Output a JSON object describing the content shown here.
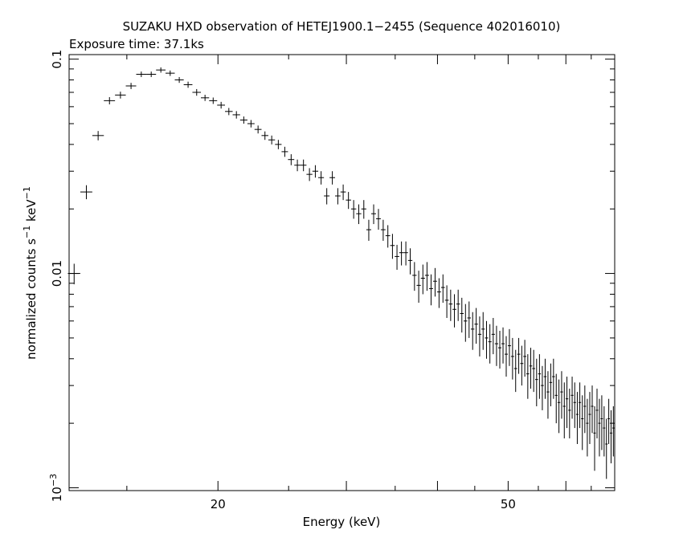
{
  "chart_data": {
    "type": "scatter",
    "title": "SUZAKU HXD observation of HETEJ1900.1−2455 (Sequence 402016010)",
    "subtitle": "Exposure time: 37.1ks",
    "xlabel": "Energy (keV)",
    "ylabel_main": "normalized counts s",
    "ylabel_exp1": "−1",
    "ylabel_mid": " keV",
    "ylabel_exp2": "−1",
    "x_scale": "log",
    "y_scale": "log",
    "xlim": [
      12.5,
      70
    ],
    "ylim": [
      0.00097,
      0.105
    ],
    "grid": false,
    "x_tick_labels": [
      {
        "value": 20,
        "label": "20"
      },
      {
        "value": 50,
        "label": "50"
      }
    ],
    "y_tick_labels": [
      {
        "value": 0.1,
        "label": "0.1"
      },
      {
        "value": 0.01,
        "label": "0.01"
      },
      {
        "value": 0.001,
        "label_base": "10",
        "label_exp": "−3"
      }
    ],
    "series": [
      {
        "points": [
          [
            12.7,
            0.01,
            0.0011
          ],
          [
            13.2,
            0.024,
            0.0018
          ],
          [
            13.7,
            0.044,
            0.0022
          ],
          [
            14.2,
            0.064,
            0.0025
          ],
          [
            14.7,
            0.068,
            0.0025
          ],
          [
            15.2,
            0.075,
            0.0025
          ],
          [
            15.7,
            0.085,
            0.0025
          ],
          [
            16.2,
            0.085,
            0.0025
          ],
          [
            16.7,
            0.089,
            0.0025
          ],
          [
            17.2,
            0.086,
            0.0025
          ],
          [
            17.7,
            0.08,
            0.0025
          ],
          [
            18.2,
            0.076,
            0.0025
          ],
          [
            18.7,
            0.07,
            0.0025
          ],
          [
            19.2,
            0.066,
            0.0022
          ],
          [
            19.7,
            0.064,
            0.0022
          ],
          [
            20.2,
            0.061,
            0.0022
          ],
          [
            20.7,
            0.057,
            0.0022
          ],
          [
            21.2,
            0.055,
            0.0022
          ],
          [
            21.7,
            0.052,
            0.002
          ],
          [
            22.2,
            0.05,
            0.002
          ],
          [
            22.7,
            0.047,
            0.002
          ],
          [
            23.2,
            0.044,
            0.002
          ],
          [
            23.7,
            0.042,
            0.002
          ],
          [
            24.2,
            0.04,
            0.002
          ],
          [
            24.7,
            0.037,
            0.002
          ],
          [
            25.2,
            0.034,
            0.002
          ],
          [
            25.7,
            0.032,
            0.002
          ],
          [
            26.2,
            0.032,
            0.002
          ],
          [
            26.7,
            0.029,
            0.002
          ],
          [
            27.2,
            0.03,
            0.002
          ],
          [
            27.7,
            0.028,
            0.002
          ],
          [
            28.2,
            0.023,
            0.002
          ],
          [
            28.7,
            0.028,
            0.002
          ],
          [
            29.2,
            0.023,
            0.002
          ],
          [
            29.7,
            0.024,
            0.002
          ],
          [
            30.2,
            0.022,
            0.002
          ],
          [
            30.7,
            0.02,
            0.002
          ],
          [
            31.2,
            0.019,
            0.002
          ],
          [
            31.7,
            0.02,
            0.002
          ],
          [
            32.2,
            0.016,
            0.0018
          ],
          [
            32.7,
            0.019,
            0.002
          ],
          [
            33.2,
            0.018,
            0.002
          ],
          [
            33.7,
            0.016,
            0.0018
          ],
          [
            34.2,
            0.015,
            0.0018
          ],
          [
            34.7,
            0.0135,
            0.0018
          ],
          [
            35.2,
            0.012,
            0.0016
          ],
          [
            35.7,
            0.0125,
            0.0016
          ],
          [
            36.2,
            0.0125,
            0.0016
          ],
          [
            36.7,
            0.0115,
            0.0016
          ],
          [
            37.2,
            0.0098,
            0.0015
          ],
          [
            37.7,
            0.0088,
            0.0015
          ],
          [
            38.2,
            0.0095,
            0.0015
          ],
          [
            38.7,
            0.0098,
            0.0015
          ],
          [
            39.2,
            0.0085,
            0.0014
          ],
          [
            39.7,
            0.0092,
            0.0014
          ],
          [
            40.2,
            0.0082,
            0.0013
          ],
          [
            40.7,
            0.0086,
            0.0013
          ],
          [
            41.2,
            0.0075,
            0.0013
          ],
          [
            41.7,
            0.0072,
            0.0012
          ],
          [
            42.2,
            0.0068,
            0.0012
          ],
          [
            42.7,
            0.0072,
            0.0012
          ],
          [
            43.2,
            0.0065,
            0.0012
          ],
          [
            43.7,
            0.006,
            0.0012
          ],
          [
            44.2,
            0.0062,
            0.0012
          ],
          [
            44.7,
            0.0055,
            0.0011
          ],
          [
            45.2,
            0.0058,
            0.0011
          ],
          [
            45.7,
            0.0052,
            0.0011
          ],
          [
            46.2,
            0.0055,
            0.0011
          ],
          [
            46.7,
            0.005,
            0.001
          ],
          [
            47.2,
            0.0048,
            0.001
          ],
          [
            47.7,
            0.0052,
            0.001
          ],
          [
            48.2,
            0.0047,
            0.001
          ],
          [
            48.7,
            0.0045,
            0.0009
          ],
          [
            49.2,
            0.0047,
            0.0009
          ],
          [
            49.7,
            0.0042,
            0.0009
          ],
          [
            50.2,
            0.0046,
            0.0009
          ],
          [
            50.7,
            0.0041,
            0.0009
          ],
          [
            51.2,
            0.0036,
            0.0008
          ],
          [
            51.7,
            0.0042,
            0.0008
          ],
          [
            52.2,
            0.0038,
            0.0008
          ],
          [
            52.7,
            0.0041,
            0.0008
          ],
          [
            53.2,
            0.0034,
            0.0008
          ],
          [
            53.7,
            0.0037,
            0.0008
          ],
          [
            54.2,
            0.0036,
            0.0008
          ],
          [
            54.7,
            0.0032,
            0.0008
          ],
          [
            55.2,
            0.0034,
            0.0008
          ],
          [
            55.7,
            0.003,
            0.0007
          ],
          [
            56.2,
            0.0033,
            0.0007
          ],
          [
            56.7,
            0.0028,
            0.0007
          ],
          [
            57.2,
            0.0031,
            0.0007
          ],
          [
            57.7,
            0.0033,
            0.0007
          ],
          [
            58.2,
            0.0027,
            0.0007
          ],
          [
            58.7,
            0.0025,
            0.0007
          ],
          [
            59.2,
            0.0028,
            0.0007
          ],
          [
            59.7,
            0.0024,
            0.0007
          ],
          [
            60.2,
            0.0026,
            0.0007
          ],
          [
            60.7,
            0.0023,
            0.0006
          ],
          [
            61.2,
            0.0027,
            0.0006
          ],
          [
            61.7,
            0.0025,
            0.0006
          ],
          [
            62.2,
            0.0022,
            0.0006
          ],
          [
            62.7,
            0.0025,
            0.0006
          ],
          [
            63.2,
            0.0021,
            0.0006
          ],
          [
            63.7,
            0.0024,
            0.0006
          ],
          [
            64.2,
            0.002,
            0.0006
          ],
          [
            64.7,
            0.0022,
            0.0006
          ],
          [
            65.2,
            0.0024,
            0.0006
          ],
          [
            65.7,
            0.0018,
            0.0006
          ],
          [
            66.2,
            0.0023,
            0.0006
          ],
          [
            66.7,
            0.002,
            0.0006
          ],
          [
            67.2,
            0.0021,
            0.0006
          ],
          [
            67.7,
            0.0019,
            0.0005
          ],
          [
            68.2,
            0.0016,
            0.0005
          ],
          [
            68.7,
            0.0021,
            0.0005
          ],
          [
            69.2,
            0.0018,
            0.0005
          ],
          [
            69.7,
            0.0019,
            0.0005
          ]
        ]
      }
    ]
  }
}
